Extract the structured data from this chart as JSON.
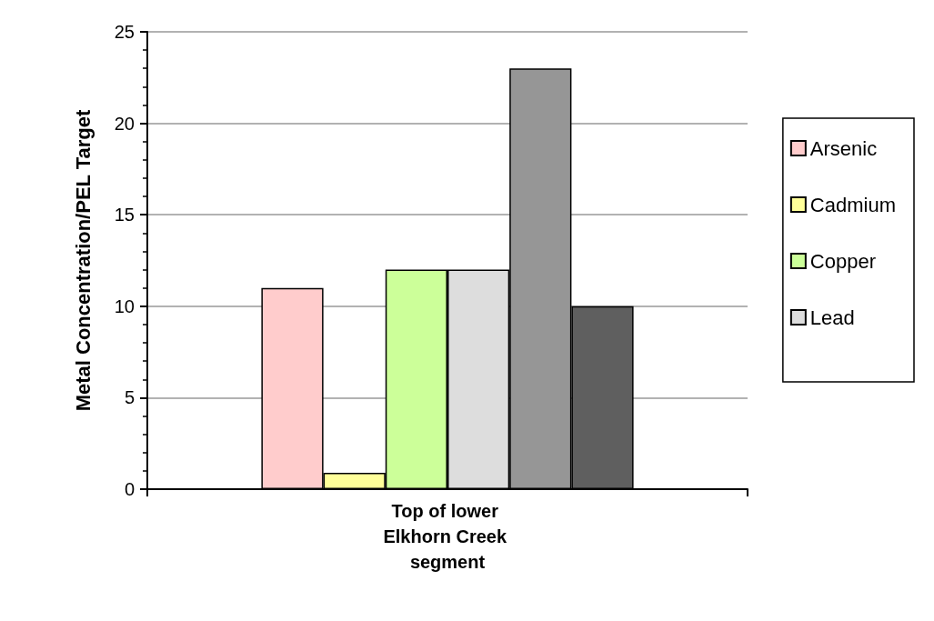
{
  "chart_data": {
    "type": "bar",
    "ylabel": "Metal Concentration/PEL Target",
    "categories": [
      "Top of lower Elkhorn Creek segment"
    ],
    "series": [
      {
        "name": "Arsenic",
        "color": "#ffcccc",
        "values": [
          11
        ]
      },
      {
        "name": "Cadmium",
        "color": "#ffff99",
        "values": [
          0.9
        ]
      },
      {
        "name": "Copper",
        "color": "#ccff99",
        "values": [
          12
        ]
      },
      {
        "name": "Lead",
        "color": "#dddddd",
        "values": [
          12
        ]
      },
      {
        "color": "#969696",
        "values": [
          23
        ]
      },
      {
        "color": "#5f5f5f",
        "values": [
          10
        ]
      }
    ],
    "ylim": [
      0,
      25
    ],
    "yticks": [
      0,
      5,
      10,
      15,
      20,
      25
    ],
    "grid": "y",
    "legend": "right"
  }
}
